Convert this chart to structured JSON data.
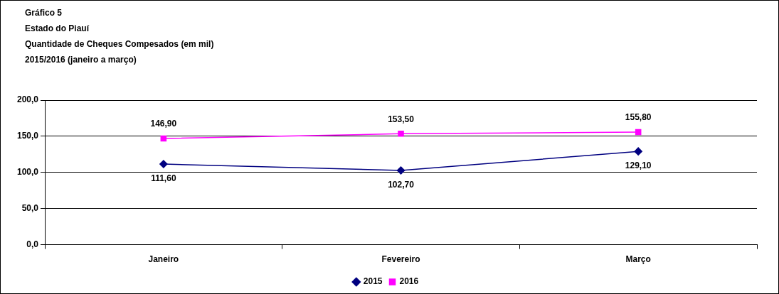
{
  "chart_data": {
    "type": "line",
    "title": "Gráfico 5",
    "subtitle": "Estado do Piauí",
    "annotations": [
      "Quantidade de Cheques Compesados (em mil)",
      "2015/2016 (janeiro a março)"
    ],
    "categories": [
      "Janeiro",
      "Fevereiro",
      "Março"
    ],
    "series": [
      {
        "name": "2015",
        "color": "#000080",
        "marker": "diamond",
        "values": [
          111.6,
          102.7,
          129.1
        ],
        "value_labels": [
          "111,60",
          "102,70",
          "129,10"
        ]
      },
      {
        "name": "2016",
        "color": "#ff00ff",
        "marker": "square",
        "values": [
          146.9,
          153.5,
          155.8
        ],
        "value_labels": [
          "146,90",
          "153,50",
          "155,80"
        ]
      }
    ],
    "ylim": [
      0,
      200
    ],
    "yticks": [
      {
        "value": 0,
        "label": "0,0"
      },
      {
        "value": 50,
        "label": "50,0"
      },
      {
        "value": 100,
        "label": "100,0"
      },
      {
        "value": 150,
        "label": "150,0"
      },
      {
        "value": 200,
        "label": "200,0"
      }
    ],
    "grid": "y",
    "legend": "bottom",
    "line_style": "solid"
  }
}
